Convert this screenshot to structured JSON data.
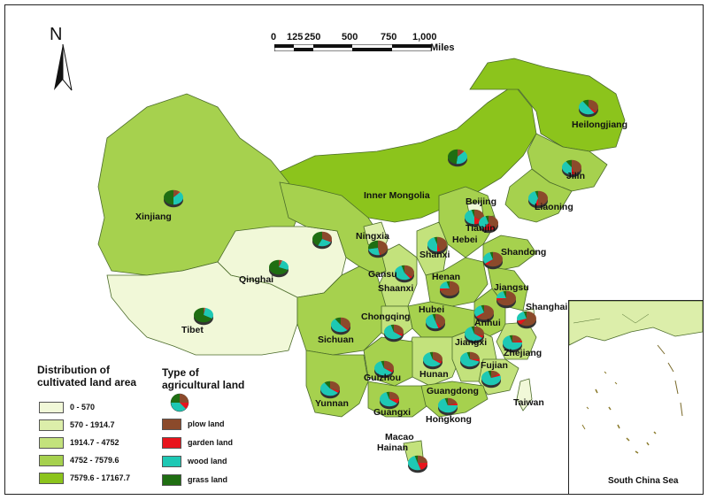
{
  "map": {
    "north_letter": "N",
    "scale": {
      "ticks": [
        "0",
        "125",
        "250",
        "500",
        "750",
        "1,000"
      ],
      "unit": "Miles"
    },
    "legend_area": {
      "title_line1": "Distribution of",
      "title_line2": "cultivated land area",
      "classes": [
        {
          "label": "0 - 570",
          "color": "#f1f8d8"
        },
        {
          "label": "570 - 1914.7",
          "color": "#dceeaa"
        },
        {
          "label": "1914.7 - 4752",
          "color": "#c3e27c"
        },
        {
          "label": "4752 - 7579.6",
          "color": "#a6d14e"
        },
        {
          "label": "7579.6 - 17167.7",
          "color": "#8cc41c"
        }
      ]
    },
    "legend_type": {
      "title_line1": "Type of",
      "title_line2": "agricultural land",
      "classes": [
        {
          "label": "plow land",
          "color": "#8b4a2b"
        },
        {
          "label": "garden land",
          "color": "#e8141c"
        },
        {
          "label": "wood land",
          "color": "#1ec8b4"
        },
        {
          "label": "grass land",
          "color": "#1f6e12"
        }
      ]
    },
    "provinces": [
      "Heilongjiang",
      "Jilin",
      "Liaoning",
      "Inner Mongolia",
      "Beijing",
      "Tianjin",
      "Hebei",
      "Shandong",
      "Shanxi",
      "Ningxia",
      "Xinjiang",
      "Qinghai",
      "Tibet",
      "Gansu",
      "Shaanxi",
      "Henan",
      "Jiangsu",
      "Shanghai",
      "Anhui",
      "Hubei",
      "Chongqing",
      "Sichuan",
      "Jiangxi",
      "Zhejiang",
      "Fujian",
      "Hunan",
      "Guizhou",
      "Yunnan",
      "Guangxi",
      "Guangdong",
      "Hongkong",
      "Macao",
      "Taiwan",
      "Hainan"
    ],
    "inset_label": "South China Sea"
  }
}
